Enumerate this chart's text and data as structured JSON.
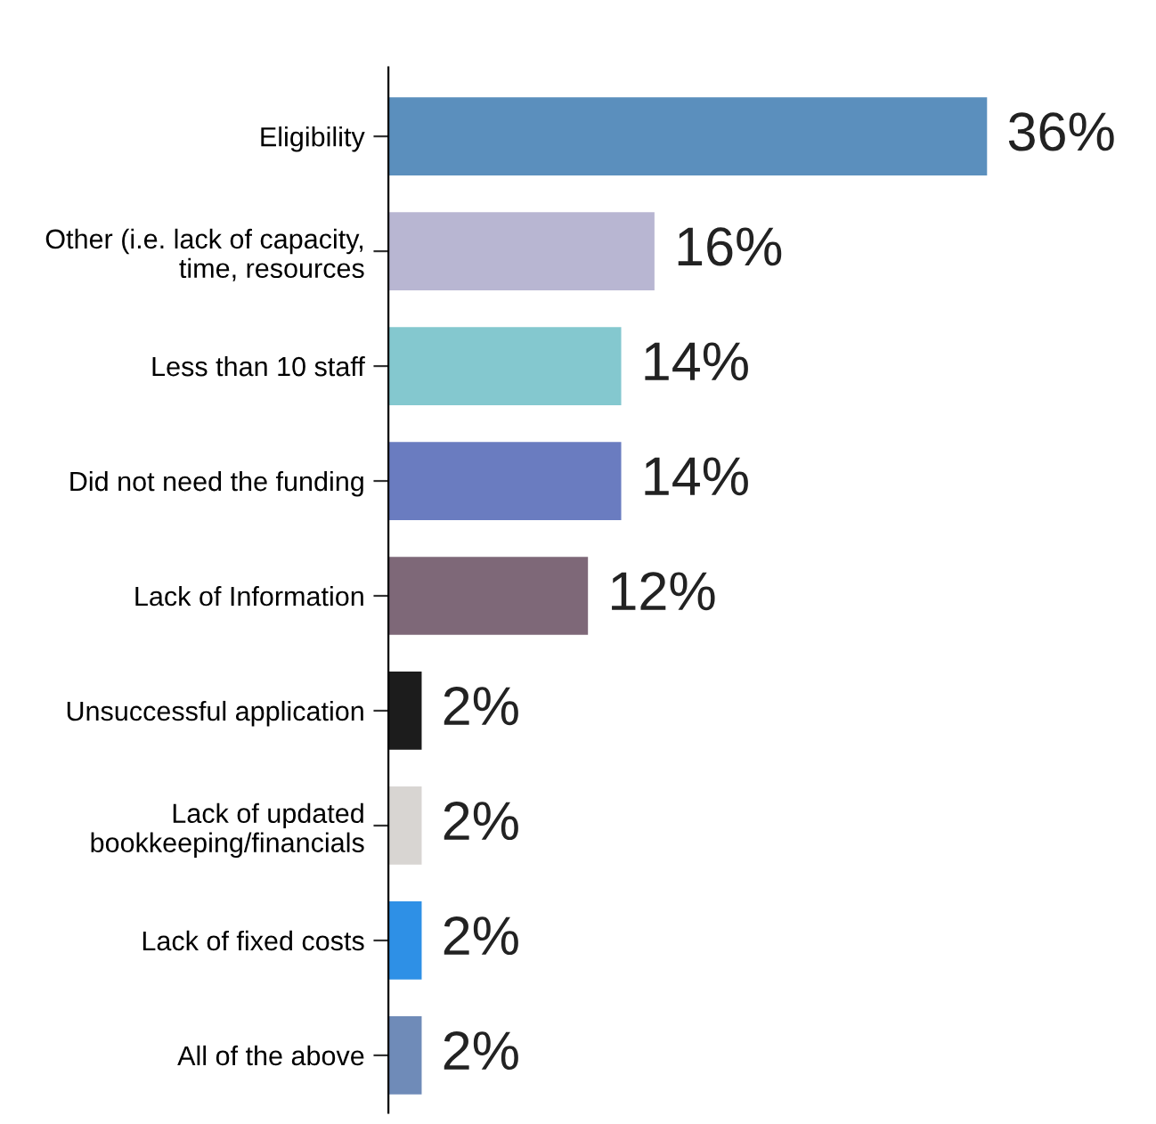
{
  "chart_data": {
    "type": "bar",
    "orientation": "horizontal",
    "categories": [
      "Eligibility",
      "Other (i.e. lack of capacity,\ntime, resources",
      "Less than 10 staff",
      "Did not need the funding",
      "Lack of Information",
      "Unsuccessful application",
      "Lack of updated\nbookkeeping/financials",
      "Lack of fixed costs",
      "All of the above"
    ],
    "values": [
      36,
      16,
      14,
      14,
      12,
      2,
      2,
      2,
      2
    ],
    "value_labels": [
      "36%",
      "16%",
      "14%",
      "14%",
      "12%",
      "2%",
      "2%",
      "2%",
      "2%"
    ],
    "colors": [
      "#5b8fbd",
      "#b8b6d2",
      "#84c8cf",
      "#6a7cc0",
      "#7e6878",
      "#1c1c1c",
      "#d8d5d2",
      "#2e90e6",
      "#6f8bb8"
    ],
    "grid": false,
    "legend": false,
    "tick_labels": "y"
  }
}
